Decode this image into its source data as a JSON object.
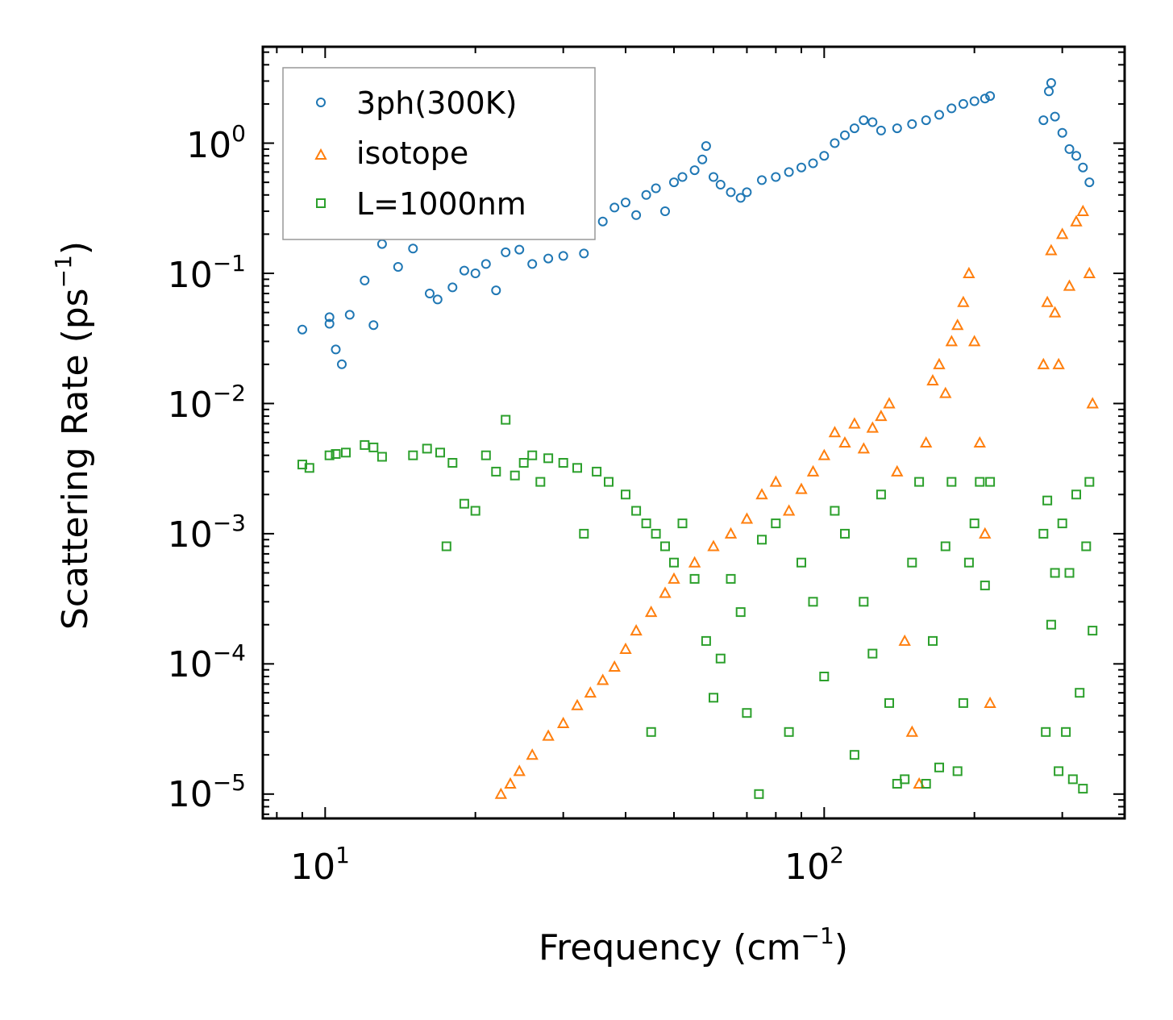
{
  "chart_data": {
    "type": "scatter",
    "title": "",
    "xlabel": "Frequency (cm",
    "xlabel_unit_exponent": "−1",
    "xlabel_close": ")",
    "ylabel": "Scattering Rate (ps",
    "ylabel_unit_exponent": "−1",
    "ylabel_close": ")",
    "xscale": "log",
    "yscale": "log",
    "xlim": [
      7.5,
      400
    ],
    "ylim": [
      6.5e-06,
      5.5
    ],
    "x_ticks": [
      {
        "value": 10,
        "base": "10",
        "exp": "1"
      },
      {
        "value": 100,
        "base": "10",
        "exp": "2"
      }
    ],
    "y_ticks": [
      {
        "value": 1,
        "base": "10",
        "exp": "0"
      },
      {
        "value": 0.1,
        "base": "10",
        "exp": "−1"
      },
      {
        "value": 0.01,
        "base": "10",
        "exp": "−2"
      },
      {
        "value": 0.001,
        "base": "10",
        "exp": "−3"
      },
      {
        "value": 0.0001,
        "base": "10",
        "exp": "−4"
      },
      {
        "value": 1e-05,
        "base": "10",
        "exp": "−5"
      }
    ],
    "legend_position": "top-left",
    "series": [
      {
        "name": "3ph(300K)",
        "marker": "circle",
        "color": "#1f77b4",
        "points": [
          [
            9.0,
            0.037
          ],
          [
            10.2,
            0.046
          ],
          [
            10.2,
            0.041
          ],
          [
            10.5,
            0.026
          ],
          [
            10.8,
            0.02
          ],
          [
            11.2,
            0.048
          ],
          [
            12.0,
            0.088
          ],
          [
            12.5,
            0.04
          ],
          [
            13.0,
            0.168
          ],
          [
            14.0,
            0.112
          ],
          [
            15.0,
            0.155
          ],
          [
            16.2,
            0.07
          ],
          [
            16.8,
            0.063
          ],
          [
            18.0,
            0.078
          ],
          [
            19.0,
            0.105
          ],
          [
            20.0,
            0.1
          ],
          [
            21.0,
            0.118
          ],
          [
            22.0,
            0.074
          ],
          [
            23.0,
            0.145
          ],
          [
            24.5,
            0.152
          ],
          [
            26.0,
            0.118
          ],
          [
            28.0,
            0.13
          ],
          [
            30.0,
            0.136
          ],
          [
            33.0,
            0.142
          ],
          [
            36.0,
            0.25
          ],
          [
            38.0,
            0.32
          ],
          [
            40.0,
            0.35
          ],
          [
            42.0,
            0.28
          ],
          [
            44.0,
            0.4
          ],
          [
            46.0,
            0.45
          ],
          [
            48.0,
            0.3
          ],
          [
            50.0,
            0.5
          ],
          [
            52.0,
            0.55
          ],
          [
            55.0,
            0.62
          ],
          [
            57.0,
            0.75
          ],
          [
            58.0,
            0.95
          ],
          [
            60.0,
            0.55
          ],
          [
            62.0,
            0.48
          ],
          [
            65.0,
            0.42
          ],
          [
            68.0,
            0.38
          ],
          [
            70.0,
            0.42
          ],
          [
            75.0,
            0.52
          ],
          [
            80.0,
            0.55
          ],
          [
            85.0,
            0.6
          ],
          [
            90.0,
            0.65
          ],
          [
            95.0,
            0.7
          ],
          [
            100.0,
            0.8
          ],
          [
            105.0,
            1.0
          ],
          [
            110.0,
            1.15
          ],
          [
            115.0,
            1.3
          ],
          [
            120.0,
            1.5
          ],
          [
            125.0,
            1.45
          ],
          [
            130.0,
            1.25
          ],
          [
            140.0,
            1.3
          ],
          [
            150.0,
            1.4
          ],
          [
            160.0,
            1.5
          ],
          [
            170.0,
            1.65
          ],
          [
            180.0,
            1.85
          ],
          [
            190.0,
            2.0
          ],
          [
            200.0,
            2.1
          ],
          [
            210.0,
            2.2
          ],
          [
            215.0,
            2.3
          ],
          [
            275.0,
            1.5
          ],
          [
            282.0,
            2.5
          ],
          [
            285.0,
            2.9
          ],
          [
            290.0,
            1.6
          ],
          [
            300.0,
            1.2
          ],
          [
            310.0,
            0.9
          ],
          [
            320.0,
            0.8
          ],
          [
            330.0,
            0.65
          ],
          [
            340.0,
            0.5
          ]
        ]
      },
      {
        "name": "isotope",
        "marker": "triangle",
        "color": "#ff7f0e",
        "points": [
          [
            22.5,
            1e-05
          ],
          [
            23.5,
            1.2e-05
          ],
          [
            24.5,
            1.5e-05
          ],
          [
            26.0,
            2e-05
          ],
          [
            28.0,
            2.8e-05
          ],
          [
            30.0,
            3.5e-05
          ],
          [
            32.0,
            4.8e-05
          ],
          [
            34.0,
            6e-05
          ],
          [
            36.0,
            7.5e-05
          ],
          [
            38.0,
            9.5e-05
          ],
          [
            40.0,
            0.00013
          ],
          [
            42.0,
            0.00018
          ],
          [
            45.0,
            0.00025
          ],
          [
            48.0,
            0.00035
          ],
          [
            50.0,
            0.00045
          ],
          [
            55.0,
            0.0006
          ],
          [
            60.0,
            0.0008
          ],
          [
            65.0,
            0.001
          ],
          [
            70.0,
            0.0013
          ],
          [
            75.0,
            0.002
          ],
          [
            80.0,
            0.0025
          ],
          [
            85.0,
            0.0015
          ],
          [
            90.0,
            0.0022
          ],
          [
            95.0,
            0.003
          ],
          [
            100.0,
            0.004
          ],
          [
            105.0,
            0.006
          ],
          [
            110.0,
            0.005
          ],
          [
            115.0,
            0.007
          ],
          [
            120.0,
            0.0045
          ],
          [
            125.0,
            0.0065
          ],
          [
            130.0,
            0.008
          ],
          [
            135.0,
            0.01
          ],
          [
            140.0,
            0.003
          ],
          [
            145.0,
            0.00015
          ],
          [
            150.0,
            3e-05
          ],
          [
            155.0,
            1.2e-05
          ],
          [
            160.0,
            0.005
          ],
          [
            165.0,
            0.015
          ],
          [
            170.0,
            0.02
          ],
          [
            175.0,
            0.012
          ],
          [
            180.0,
            0.03
          ],
          [
            185.0,
            0.04
          ],
          [
            190.0,
            0.06
          ],
          [
            195.0,
            0.1
          ],
          [
            200.0,
            0.03
          ],
          [
            205.0,
            0.005
          ],
          [
            210.0,
            0.001
          ],
          [
            215.0,
            5e-05
          ],
          [
            275.0,
            0.02
          ],
          [
            280.0,
            0.06
          ],
          [
            285.0,
            0.15
          ],
          [
            290.0,
            0.05
          ],
          [
            295.0,
            0.02
          ],
          [
            300.0,
            0.2
          ],
          [
            310.0,
            0.08
          ],
          [
            320.0,
            0.25
          ],
          [
            330.0,
            0.3
          ],
          [
            340.0,
            0.1
          ],
          [
            345.0,
            0.01
          ]
        ]
      },
      {
        "name": "L=1000nm",
        "marker": "square",
        "color": "#2ca02c",
        "points": [
          [
            9.0,
            0.0034
          ],
          [
            9.3,
            0.0032
          ],
          [
            10.2,
            0.004
          ],
          [
            10.5,
            0.0041
          ],
          [
            11.0,
            0.0042
          ],
          [
            12.0,
            0.0048
          ],
          [
            12.5,
            0.0046
          ],
          [
            13.0,
            0.0039
          ],
          [
            15.0,
            0.004
          ],
          [
            16.0,
            0.0045
          ],
          [
            17.0,
            0.0042
          ],
          [
            17.5,
            0.0008
          ],
          [
            18.0,
            0.0035
          ],
          [
            19.0,
            0.0017
          ],
          [
            20.0,
            0.0015
          ],
          [
            21.0,
            0.004
          ],
          [
            22.0,
            0.003
          ],
          [
            23.0,
            0.0075
          ],
          [
            24.0,
            0.0028
          ],
          [
            25.0,
            0.0035
          ],
          [
            26.0,
            0.004
          ],
          [
            27.0,
            0.0025
          ],
          [
            28.0,
            0.0038
          ],
          [
            30.0,
            0.0035
          ],
          [
            32.0,
            0.0032
          ],
          [
            33.0,
            0.001
          ],
          [
            35.0,
            0.003
          ],
          [
            37.0,
            0.0025
          ],
          [
            40.0,
            0.002
          ],
          [
            42.0,
            0.0015
          ],
          [
            44.0,
            0.0012
          ],
          [
            45.0,
            3e-05
          ],
          [
            46.0,
            0.001
          ],
          [
            48.0,
            0.0008
          ],
          [
            50.0,
            0.0006
          ],
          [
            52.0,
            0.0012
          ],
          [
            55.0,
            0.00045
          ],
          [
            58.0,
            0.00015
          ],
          [
            60.0,
            5.5e-05
          ],
          [
            62.0,
            0.00011
          ],
          [
            65.0,
            0.00045
          ],
          [
            68.0,
            0.00025
          ],
          [
            70.0,
            4.2e-05
          ],
          [
            74.0,
            1e-05
          ],
          [
            75.0,
            0.0009
          ],
          [
            80.0,
            0.0012
          ],
          [
            85.0,
            3e-05
          ],
          [
            90.0,
            0.0006
          ],
          [
            95.0,
            0.0003
          ],
          [
            100.0,
            8e-05
          ],
          [
            105.0,
            0.0015
          ],
          [
            110.0,
            0.001
          ],
          [
            115.0,
            2e-05
          ],
          [
            120.0,
            0.0003
          ],
          [
            125.0,
            0.00012
          ],
          [
            130.0,
            0.002
          ],
          [
            135.0,
            5e-05
          ],
          [
            140.0,
            1.2e-05
          ],
          [
            145.0,
            1.3e-05
          ],
          [
            150.0,
            0.0006
          ],
          [
            155.0,
            0.0025
          ],
          [
            160.0,
            1.2e-05
          ],
          [
            165.0,
            0.00015
          ],
          [
            170.0,
            1.6e-05
          ],
          [
            175.0,
            0.0008
          ],
          [
            180.0,
            0.0025
          ],
          [
            185.0,
            1.5e-05
          ],
          [
            190.0,
            5e-05
          ],
          [
            195.0,
            0.0006
          ],
          [
            200.0,
            0.0012
          ],
          [
            205.0,
            0.0025
          ],
          [
            210.0,
            0.0004
          ],
          [
            215.0,
            0.0025
          ],
          [
            275.0,
            0.001
          ],
          [
            278.0,
            3e-05
          ],
          [
            280.0,
            0.0018
          ],
          [
            285.0,
            0.0002
          ],
          [
            290.0,
            0.0005
          ],
          [
            295.0,
            1.5e-05
          ],
          [
            300.0,
            0.0012
          ],
          [
            305.0,
            3e-05
          ],
          [
            310.0,
            0.0005
          ],
          [
            315.0,
            1.3e-05
          ],
          [
            320.0,
            0.002
          ],
          [
            325.0,
            6e-05
          ],
          [
            330.0,
            1.1e-05
          ],
          [
            335.0,
            0.0008
          ],
          [
            340.0,
            0.0025
          ],
          [
            345.0,
            0.00018
          ]
        ]
      }
    ]
  }
}
